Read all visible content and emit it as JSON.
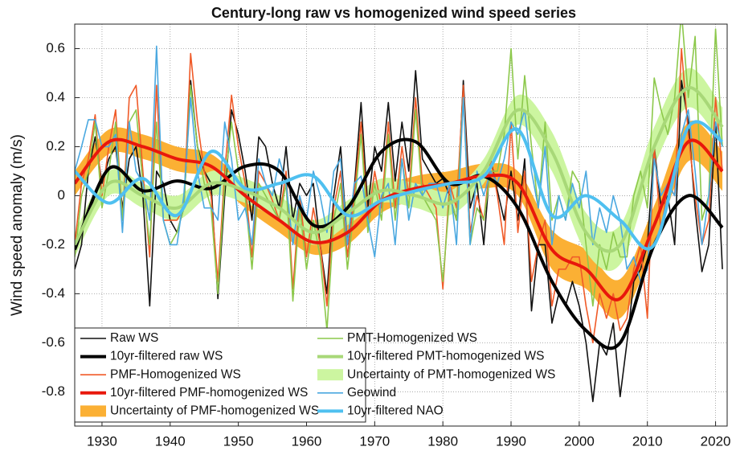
{
  "chart_data": {
    "type": "line",
    "title": "Century-long raw vs homogenized wind speed series",
    "y_label": "Wind speed anomaly (m/s)",
    "xlim": [
      1926,
      2021.7
    ],
    "xticks": [
      1930,
      1940,
      1950,
      1960,
      1970,
      1980,
      1990,
      2000,
      2010,
      2020
    ],
    "ylim": [
      -0.94,
      0.7
    ],
    "yticks": [
      -0.8,
      -0.6,
      -0.4,
      -0.2,
      0,
      0.2,
      0.4,
      0.6
    ],
    "grid": true,
    "legend": "lower left",
    "x": [
      1926,
      1927,
      1928,
      1929,
      1930,
      1931,
      1932,
      1933,
      1934,
      1935,
      1936,
      1937,
      1938,
      1939,
      1940,
      1941,
      1942,
      1943,
      1944,
      1945,
      1946,
      1947,
      1948,
      1949,
      1950,
      1951,
      1952,
      1953,
      1954,
      1955,
      1956,
      1957,
      1958,
      1959,
      1960,
      1961,
      1962,
      1963,
      1964,
      1965,
      1966,
      1967,
      1968,
      1969,
      1970,
      1971,
      1972,
      1973,
      1974,
      1975,
      1976,
      1977,
      1978,
      1979,
      1980,
      1981,
      1982,
      1983,
      1984,
      1985,
      1986,
      1987,
      1988,
      1989,
      1990,
      1991,
      1992,
      1993,
      1994,
      1995,
      1996,
      1997,
      1998,
      1999,
      2000,
      2001,
      2002,
      2003,
      2004,
      2005,
      2006,
      2007,
      2008,
      2009,
      2010,
      2011,
      2012,
      2013,
      2014,
      2015,
      2016,
      2017,
      2018,
      2019,
      2020,
      2021
    ],
    "series": [
      {
        "name": "Raw WS",
        "color": "#111111",
        "kind": "line",
        "values": [
          -0.3,
          -0.2,
          0.1,
          0.24,
          0.05,
          0.15,
          0.2,
          -0.05,
          0.15,
          0.2,
          0.0,
          -0.45,
          0.1,
          0.05,
          -0.1,
          -0.15,
          -0.05,
          0.47,
          0.2,
          0.1,
          0.05,
          -0.42,
          0.0,
          0.35,
          0.25,
          0.1,
          -0.1,
          0.24,
          0.2,
          0.05,
          -0.05,
          0.2,
          -0.1,
          0.05,
          0.0,
          0.05,
          -0.2,
          -0.4,
          0.0,
          0.2,
          -0.2,
          0.03,
          0.38,
          -0.05,
          0.2,
          0.1,
          0.38,
          0.06,
          0.3,
          0.1,
          0.51,
          0.15,
          0.1,
          0.05,
          0.07,
          0.0,
          -0.1,
          0.47,
          -0.05,
          0.05,
          -0.2,
          0.15,
          0.02,
          -0.1,
          0.1,
          -0.1,
          0.15,
          -0.47,
          -0.2,
          -0.2,
          -0.52,
          -0.4,
          -0.45,
          -0.35,
          -0.45,
          -0.6,
          -0.84,
          -0.6,
          -0.65,
          -0.52,
          -0.82,
          -0.6,
          -0.35,
          -0.3,
          -0.2,
          0.2,
          -0.05,
          0.0,
          -0.2,
          0.47,
          0.3,
          -0.05,
          -0.31,
          -0.2,
          0.3,
          -0.3
        ]
      },
      {
        "name": "10yr-filtered raw WS",
        "color": "#000000",
        "kind": "bold",
        "x": [
          1926,
          1931,
          1936,
          1941,
          1946,
          1951,
          1956,
          1961,
          1966,
          1971,
          1976,
          1981,
          1986,
          1991,
          1996,
          2001,
          2006,
          2011,
          2016,
          2021
        ],
        "values": [
          -0.22,
          0.11,
          0.02,
          0.06,
          0.03,
          0.12,
          0.1,
          -0.12,
          -0.05,
          0.18,
          0.22,
          0.05,
          0.08,
          -0.05,
          -0.35,
          -0.55,
          -0.6,
          -0.2,
          0.0,
          -0.13
        ]
      },
      {
        "name": "PMF-Homogenized WS",
        "color": "#f05a28",
        "kind": "line",
        "values": [
          -0.2,
          0.05,
          0.15,
          0.33,
          0.0,
          0.2,
          0.35,
          -0.1,
          0.4,
          0.45,
          0.1,
          -0.25,
          0.45,
          -0.1,
          -0.1,
          -0.1,
          -0.05,
          0.58,
          0.3,
          0.1,
          0.0,
          -0.35,
          0.1,
          0.41,
          0.2,
          0.05,
          -0.25,
          0.1,
          0.05,
          -0.02,
          -0.1,
          0.1,
          -0.38,
          0.0,
          -0.25,
          -0.05,
          -0.2,
          -0.45,
          -0.05,
          0.1,
          -0.25,
          0.0,
          0.3,
          -0.1,
          0.1,
          -0.05,
          0.3,
          -0.05,
          0.2,
          0.0,
          0.4,
          0.05,
          0.0,
          -0.05,
          -0.38,
          0.05,
          -0.05,
          0.45,
          -0.15,
          0.0,
          -0.1,
          0.15,
          0.0,
          -0.2,
          0.3,
          -0.15,
          0.1,
          -0.35,
          -0.2,
          -0.1,
          -0.45,
          -0.3,
          -0.3,
          -0.25,
          -0.25,
          -0.45,
          -0.6,
          -0.4,
          -0.5,
          -0.4,
          -0.55,
          -0.5,
          -0.3,
          -0.2,
          -0.5,
          0.2,
          -0.15,
          0.05,
          0.0,
          0.6,
          0.25,
          0.0,
          -0.2,
          -0.1,
          0.4,
          0.1
        ]
      },
      {
        "name": "10yr-filtered PMF-homogenized WS",
        "color": "#e8180c",
        "kind": "bold",
        "x": [
          1926,
          1931,
          1936,
          1941,
          1946,
          1951,
          1956,
          1961,
          1966,
          1971,
          1976,
          1981,
          1986,
          1991,
          1996,
          2001,
          2006,
          2011,
          2016,
          2021
        ],
        "values": [
          0.05,
          0.22,
          0.2,
          0.15,
          0.12,
          0.0,
          -0.1,
          -0.19,
          -0.15,
          -0.02,
          0.03,
          0.05,
          0.08,
          0.05,
          -0.22,
          -0.3,
          -0.42,
          -0.12,
          0.22,
          0.1
        ]
      },
      {
        "name": "Uncertainty of PMF-homogenized WS",
        "color": "#fbb034",
        "kind": "band",
        "x": [
          1926,
          1931,
          1936,
          1941,
          1946,
          1951,
          1956,
          1961,
          1966,
          1971,
          1976,
          1981,
          1986,
          1991,
          1996,
          2001,
          2006,
          2011,
          2016,
          2021
        ],
        "lower": [
          0.0,
          0.17,
          0.15,
          0.1,
          0.07,
          -0.05,
          -0.15,
          -0.24,
          -0.2,
          -0.07,
          -0.02,
          0.0,
          0.03,
          0.0,
          -0.3,
          -0.38,
          -0.5,
          -0.2,
          0.14,
          0.02
        ],
        "upper": [
          0.1,
          0.27,
          0.25,
          0.2,
          0.17,
          0.05,
          -0.05,
          -0.14,
          -0.1,
          0.03,
          0.08,
          0.1,
          0.13,
          0.1,
          -0.14,
          -0.22,
          -0.34,
          -0.04,
          0.3,
          0.18
        ]
      },
      {
        "name": "PMT-Homogenized WS",
        "color": "#8cc84b",
        "kind": "line",
        "values": [
          -0.25,
          0.0,
          0.1,
          0.3,
          -0.05,
          0.1,
          0.3,
          -0.1,
          0.3,
          0.35,
          0.05,
          -0.2,
          0.3,
          -0.1,
          -0.2,
          -0.15,
          -0.05,
          0.45,
          0.2,
          0.05,
          -0.05,
          -0.4,
          0.05,
          0.3,
          0.1,
          0.0,
          -0.3,
          0.05,
          0.0,
          -0.05,
          -0.1,
          0.05,
          -0.43,
          -0.05,
          -0.3,
          -0.1,
          -0.25,
          -0.55,
          -0.1,
          0.05,
          -0.3,
          -0.05,
          0.25,
          -0.15,
          0.05,
          -0.1,
          0.25,
          -0.1,
          0.15,
          -0.05,
          0.35,
          0.0,
          -0.05,
          -0.1,
          -0.35,
          0.0,
          -0.1,
          0.4,
          -0.2,
          -0.05,
          -0.1,
          0.1,
          0.1,
          0.25,
          0.6,
          0.15,
          0.49,
          0.2,
          -0.05,
          0.3,
          -0.1,
          0.0,
          -0.1,
          0.1,
          0.05,
          -0.2,
          -0.45,
          -0.2,
          -0.3,
          -0.15,
          -0.25,
          -0.25,
          0.0,
          0.1,
          -0.05,
          0.48,
          0.35,
          0.25,
          0.4,
          0.75,
          0.4,
          0.65,
          -0.1,
          0.0,
          0.68,
          0.2
        ]
      },
      {
        "name": "10yr-filtered PMT-homogenized WS",
        "color": "#a8d878",
        "kind": "bold",
        "x": [
          1926,
          1931,
          1936,
          1941,
          1946,
          1951,
          1956,
          1961,
          1966,
          1971,
          1976,
          1981,
          1986,
          1991,
          1996,
          2001,
          2006,
          2011,
          2016,
          2021
        ],
        "values": [
          -0.2,
          0.05,
          0.0,
          -0.05,
          0.05,
          0.02,
          -0.05,
          -0.15,
          -0.07,
          0.02,
          0.0,
          -0.03,
          0.1,
          0.35,
          0.18,
          -0.15,
          -0.2,
          0.2,
          0.44,
          0.28
        ]
      },
      {
        "name": "Uncertainty of PMT-homogenized WS",
        "color": "#ccf5a0",
        "kind": "band",
        "x": [
          1926,
          1931,
          1936,
          1941,
          1946,
          1951,
          1956,
          1961,
          1966,
          1971,
          1976,
          1981,
          1986,
          1991,
          1996,
          2001,
          2006,
          2011,
          2016,
          2021
        ],
        "lower": [
          -0.25,
          0.0,
          -0.05,
          -0.1,
          0.0,
          -0.03,
          -0.1,
          -0.2,
          -0.12,
          -0.03,
          -0.05,
          -0.08,
          0.05,
          0.29,
          0.1,
          -0.23,
          -0.28,
          0.12,
          0.36,
          0.2
        ],
        "upper": [
          -0.15,
          0.1,
          0.05,
          0.0,
          0.1,
          0.07,
          0.0,
          -0.1,
          -0.02,
          0.07,
          0.05,
          0.02,
          0.15,
          0.41,
          0.26,
          -0.07,
          -0.12,
          0.28,
          0.52,
          0.36
        ]
      },
      {
        "name": "Geowind",
        "color": "#4aa8e0",
        "kind": "line",
        "values": [
          0.1,
          0.2,
          0.31,
          0.31,
          0.2,
          0.2,
          0.25,
          -0.15,
          0.3,
          0.1,
          0.05,
          -0.1,
          0.61,
          -0.1,
          -0.2,
          -0.2,
          0.0,
          0.4,
          0.1,
          -0.05,
          -0.05,
          -0.1,
          0.3,
          0.15,
          -0.1,
          -0.05,
          -0.2,
          0.15,
          0.05,
          0.0,
          0.15,
          0.05,
          -0.2,
          0.0,
          -0.1,
          0.1,
          0.0,
          -0.15,
          0.1,
          0.15,
          -0.2,
          0.05,
          0.08,
          -0.1,
          -0.25,
          0.0,
          0.05,
          -0.2,
          0.15,
          -0.1,
          0.05,
          0.0,
          0.05,
          0.05,
          -0.05,
          0.05,
          -0.2,
          0.4,
          -0.2,
          0.1,
          0.0,
          0.1,
          0.05,
          0.15,
          0.3,
          0.25,
          0.35,
          0.1,
          -0.05,
          0.2,
          -0.2,
          0.0,
          -0.1,
          0.05,
          -0.05,
          0.1,
          -0.2,
          -0.05,
          -0.15,
          0.0,
          -0.1,
          -0.3,
          -0.25,
          -0.35,
          -0.3,
          0.15,
          0.0,
          0.05,
          0.0,
          0.25,
          0.35,
          0.1,
          -0.2,
          0.0,
          0.3,
          0.2
        ]
      },
      {
        "name": "10yr-filtered NAO",
        "color": "#4fc0f0",
        "kind": "bold",
        "x": [
          1926,
          1931,
          1936,
          1941,
          1946,
          1951,
          1956,
          1961,
          1966,
          1971,
          1976,
          1981,
          1986,
          1991,
          1996,
          2001,
          2006,
          2011,
          2016,
          2021
        ],
        "values": [
          0.1,
          -0.03,
          0.07,
          -0.08,
          0.18,
          0.03,
          0.05,
          0.08,
          -0.08,
          -0.02,
          0.02,
          0.05,
          0.08,
          0.27,
          -0.08,
          0.0,
          -0.1,
          -0.2,
          0.28,
          0.22
        ]
      }
    ]
  }
}
